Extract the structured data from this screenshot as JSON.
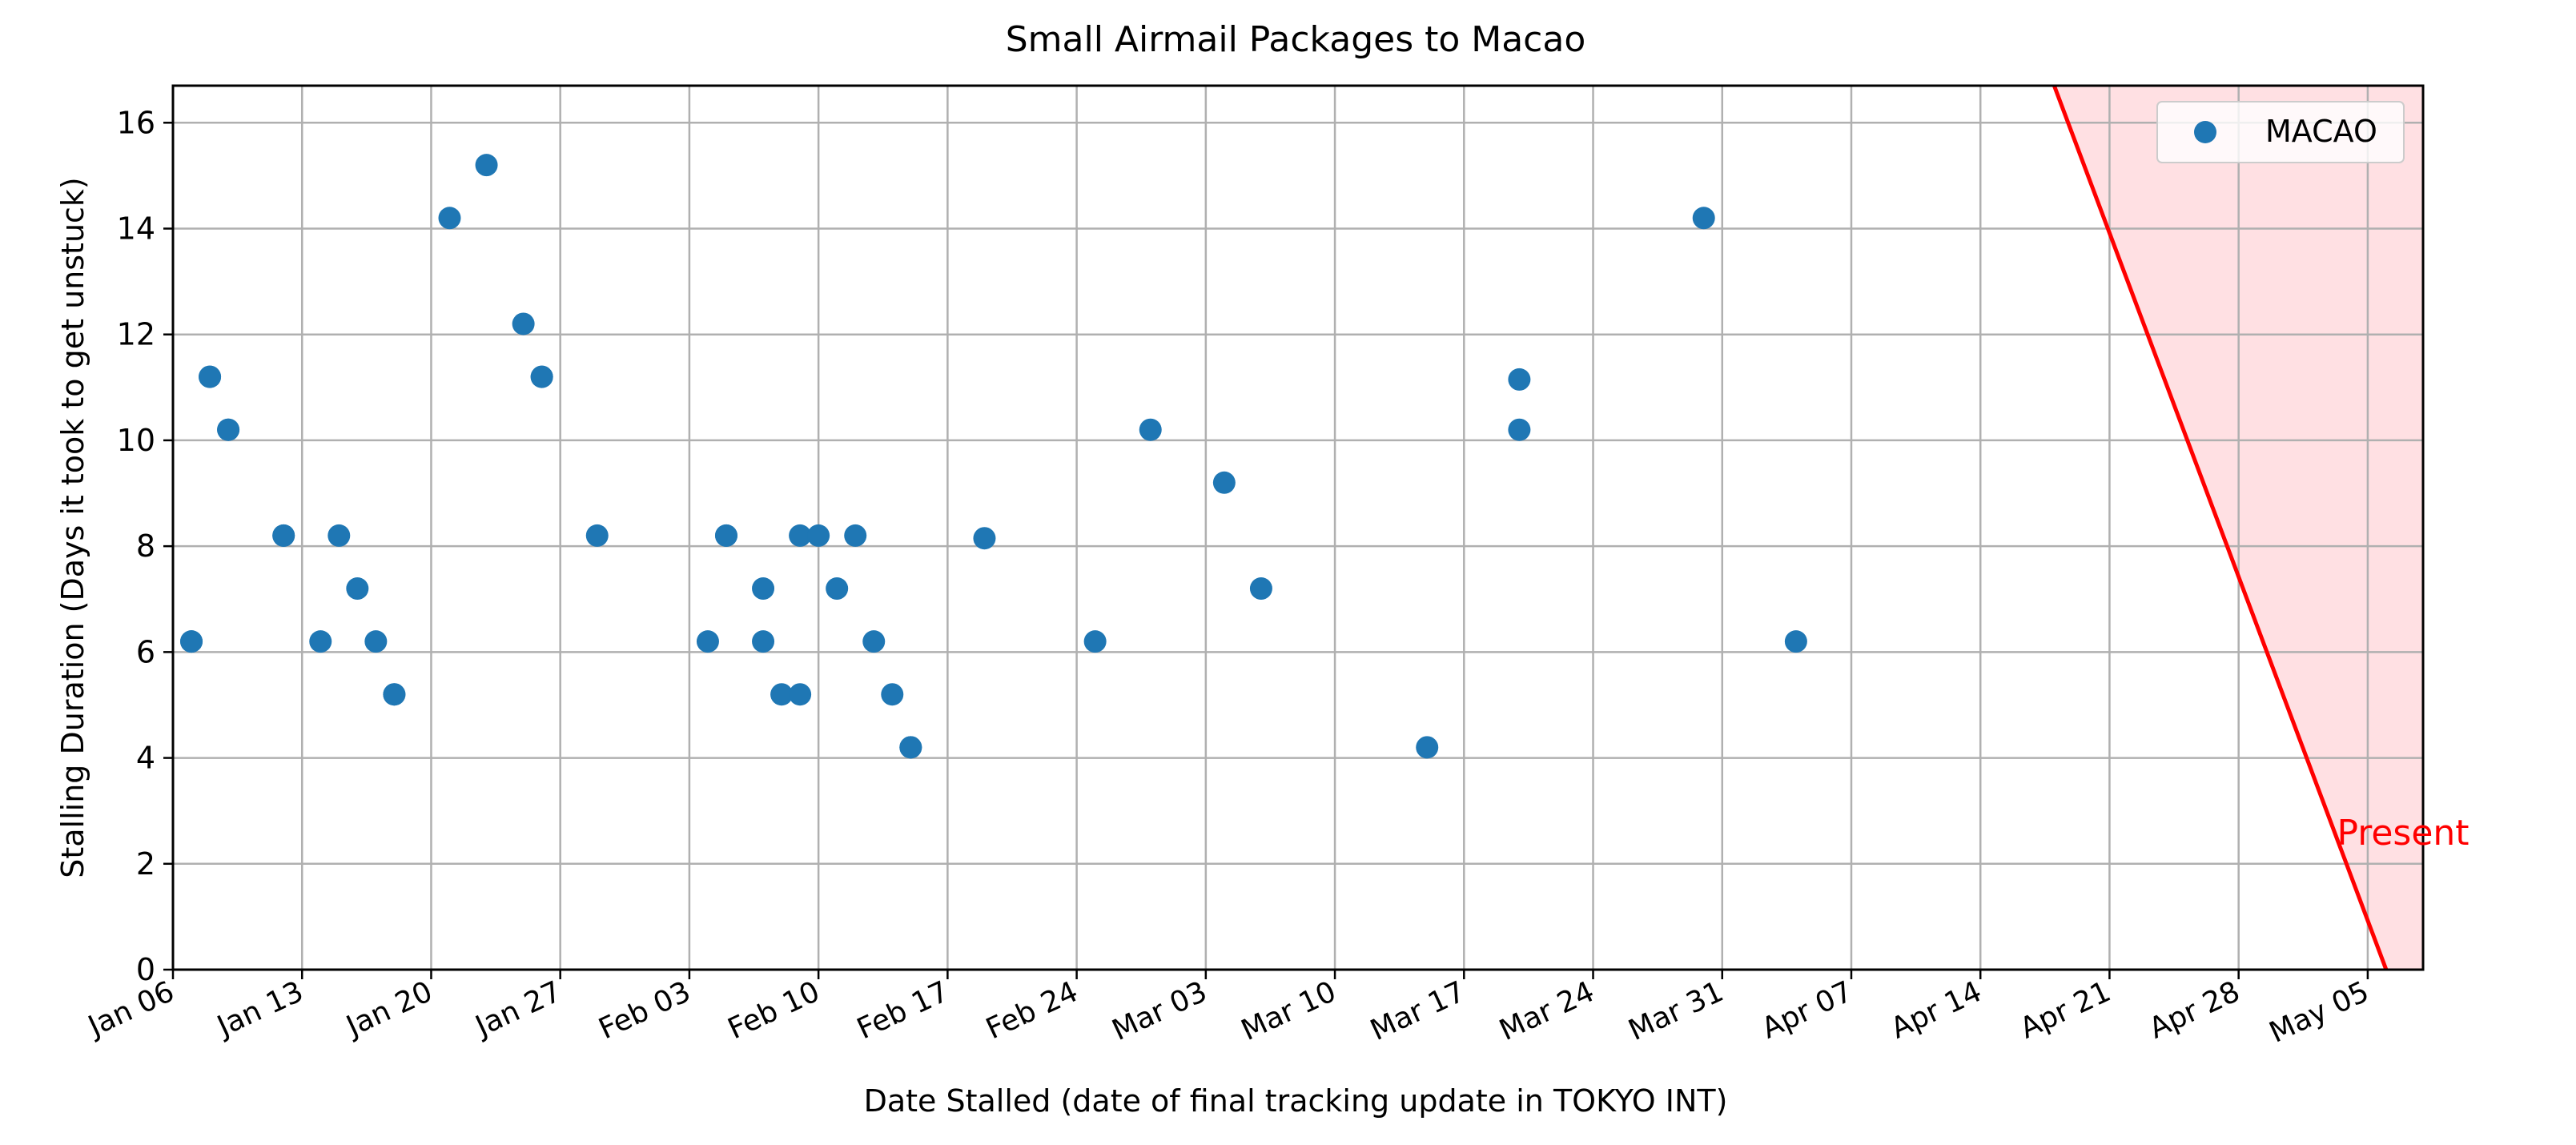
{
  "chart_data": {
    "type": "scatter",
    "title": "Small Airmail Packages to Macao",
    "xlabel": "Date Stalled (date of final tracking update in TOKYO INT)",
    "ylabel": "Stalling Duration (Days it took to get unstuck)",
    "xlim": [
      "2025-01-06",
      "2025-05-08"
    ],
    "ylim": [
      0,
      16.7
    ],
    "x_ticks": [
      "2025-01-06",
      "2025-01-13",
      "2025-01-20",
      "2025-01-27",
      "2025-02-03",
      "2025-02-10",
      "2025-02-17",
      "2025-02-24",
      "2025-03-03",
      "2025-03-10",
      "2025-03-17",
      "2025-03-24",
      "2025-03-31",
      "2025-04-07",
      "2025-04-14",
      "2025-04-21",
      "2025-04-28",
      "2025-05-05"
    ],
    "x_tick_labels": [
      "Jan 06",
      "Jan 13",
      "Jan 20",
      "Jan 27",
      "Feb 03",
      "Feb 10",
      "Feb 17",
      "Feb 24",
      "Mar 03",
      "Mar 10",
      "Mar 17",
      "Mar 24",
      "Mar 31",
      "Apr 07",
      "Apr 14",
      "Apr 21",
      "Apr 28",
      "May 05"
    ],
    "y_ticks": [
      0,
      2,
      4,
      6,
      8,
      10,
      12,
      14,
      16
    ],
    "y_tick_labels": [
      "0",
      "2",
      "4",
      "6",
      "8",
      "10",
      "12",
      "14",
      "16"
    ],
    "grid": true,
    "legend": {
      "position": "top-right",
      "entries": [
        "MACAO"
      ]
    },
    "series": [
      {
        "name": "MACAO",
        "color": "#1f77b4",
        "points": [
          {
            "x": "2025-01-07",
            "y": 6.2
          },
          {
            "x": "2025-01-07",
            "y": 6.2
          },
          {
            "x": "2025-01-08",
            "y": 11.2
          },
          {
            "x": "2025-01-08",
            "y": 11.2
          },
          {
            "x": "2025-01-09",
            "y": 10.2
          },
          {
            "x": "2025-01-09",
            "y": 10.2
          },
          {
            "x": "2025-01-12",
            "y": 8.2
          },
          {
            "x": "2025-01-12",
            "y": 8.2
          },
          {
            "x": "2025-01-14",
            "y": 6.2
          },
          {
            "x": "2025-01-15",
            "y": 8.2
          },
          {
            "x": "2025-01-16",
            "y": 7.2
          },
          {
            "x": "2025-01-17",
            "y": 6.2
          },
          {
            "x": "2025-01-18",
            "y": 5.2
          },
          {
            "x": "2025-01-18",
            "y": 5.2
          },
          {
            "x": "2025-01-21",
            "y": 14.2
          },
          {
            "x": "2025-01-23",
            "y": 15.2
          },
          {
            "x": "2025-01-25",
            "y": 12.2
          },
          {
            "x": "2025-01-26",
            "y": 11.2
          },
          {
            "x": "2025-01-26",
            "y": 11.2
          },
          {
            "x": "2025-01-29",
            "y": 8.2
          },
          {
            "x": "2025-02-04",
            "y": 6.2
          },
          {
            "x": "2025-02-05",
            "y": 8.2
          },
          {
            "x": "2025-02-05",
            "y": 8.2
          },
          {
            "x": "2025-02-07",
            "y": 7.2
          },
          {
            "x": "2025-02-07",
            "y": 6.2
          },
          {
            "x": "2025-02-08",
            "y": 5.2
          },
          {
            "x": "2025-02-09",
            "y": 5.2
          },
          {
            "x": "2025-02-09",
            "y": 8.2
          },
          {
            "x": "2025-02-10",
            "y": 8.2
          },
          {
            "x": "2025-02-11",
            "y": 7.2
          },
          {
            "x": "2025-02-12",
            "y": 8.2
          },
          {
            "x": "2025-02-13",
            "y": 6.2
          },
          {
            "x": "2025-02-14",
            "y": 5.2
          },
          {
            "x": "2025-02-15",
            "y": 4.2
          },
          {
            "x": "2025-02-15",
            "y": 4.2
          },
          {
            "x": "2025-02-19",
            "y": 8.15
          },
          {
            "x": "2025-02-25",
            "y": 6.2
          },
          {
            "x": "2025-02-28",
            "y": 10.2
          },
          {
            "x": "2025-03-04",
            "y": 9.2
          },
          {
            "x": "2025-03-06",
            "y": 7.2
          },
          {
            "x": "2025-03-15",
            "y": 4.2
          },
          {
            "x": "2025-03-20",
            "y": 11.15
          },
          {
            "x": "2025-03-20",
            "y": 10.2
          },
          {
            "x": "2025-03-30",
            "y": 14.2
          },
          {
            "x": "2025-04-04",
            "y": 6.2
          }
        ]
      }
    ],
    "annotations": [
      {
        "text": "Present",
        "color": "#ff0000",
        "line_start": {
          "x": "2025-04-18",
          "y": 16.7
        },
        "line_end": {
          "x": "2025-05-06",
          "y": 0
        },
        "fill_color": "#ffe0e3"
      }
    ]
  }
}
